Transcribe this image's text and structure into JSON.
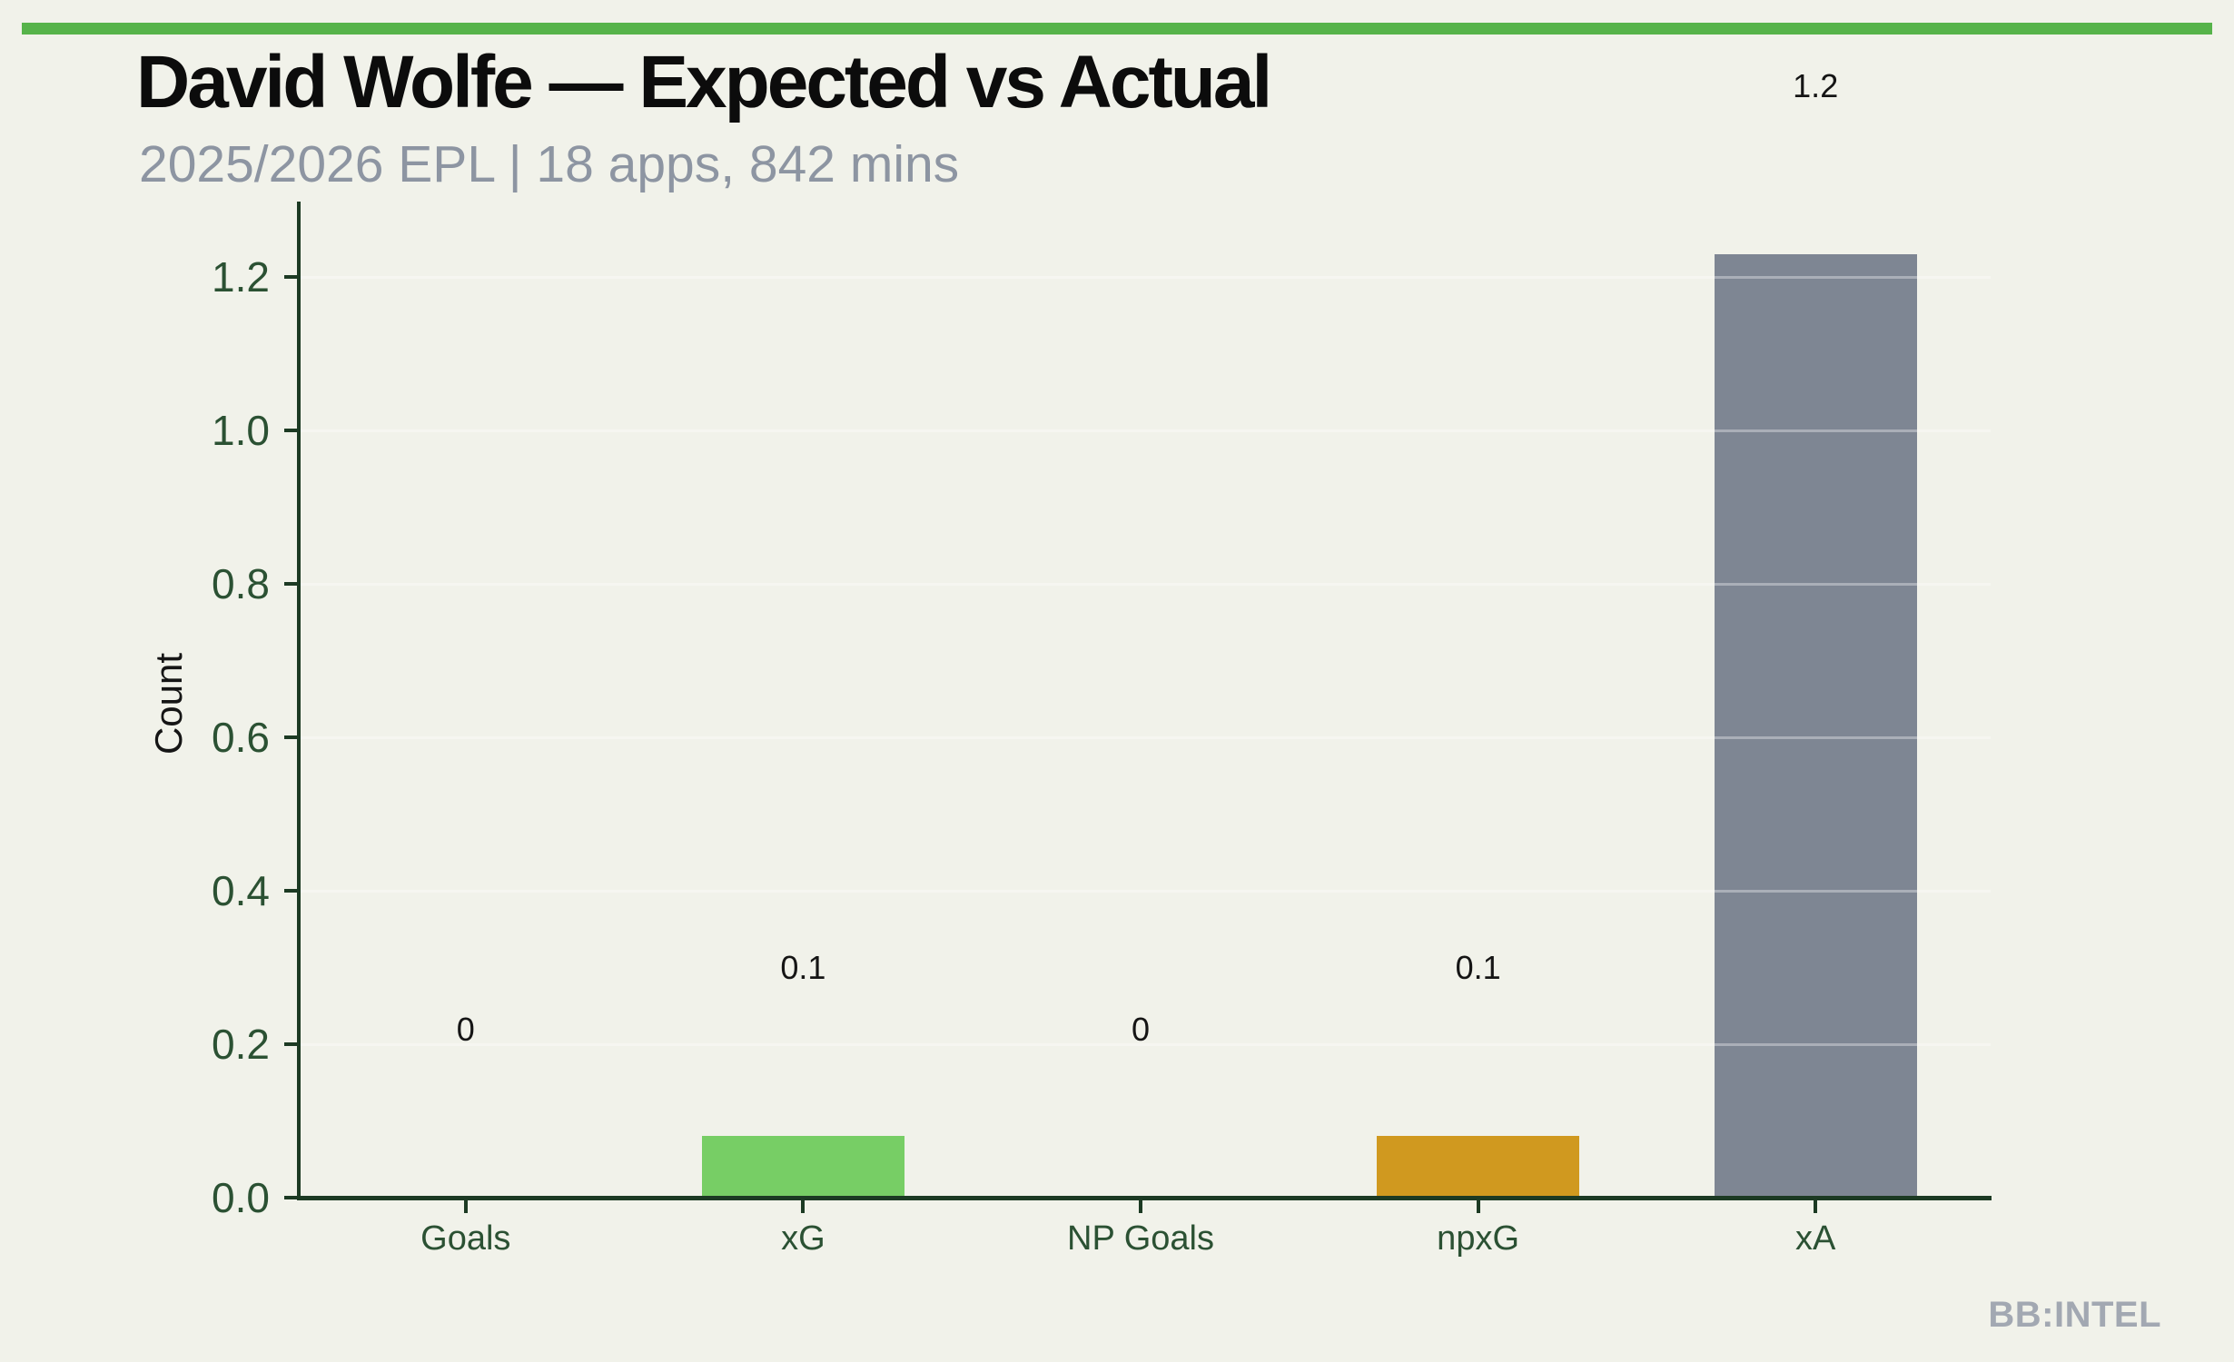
{
  "header": {
    "title": "David Wolfe — Expected vs Actual",
    "subtitle": "2025/2026 EPL | 18 apps, 842 mins"
  },
  "watermark": "BB:INTEL",
  "colors": {
    "background": "#f1f2ea",
    "accent_bar_green": "#56b34a",
    "axis_dark_green": "#1c3a23",
    "tick_label_green": "#2b5133",
    "title_text": "#0c0c0c",
    "subtitle_gray": "#8d95a2",
    "bar_label_text": "#151515",
    "watermark_gray": "#a2a8b2",
    "gridline": "rgba(255,255,255,0.34)"
  },
  "chart_data": {
    "type": "bar",
    "title": "David Wolfe — Expected vs Actual",
    "subtitle": "2025/2026 EPL | 18 apps, 842 mins",
    "categories": [
      "Goals",
      "xG",
      "NP Goals",
      "npxG",
      "xA"
    ],
    "values": [
      0,
      0.08,
      0,
      0.08,
      1.23
    ],
    "bar_labels": [
      "0",
      "0.1",
      "0",
      "0.1",
      "1.2"
    ],
    "bar_colors": [
      "#77ce65",
      "#77ce65",
      "#d0991f",
      "#d0991f",
      "#7e8693"
    ],
    "xlabel": "",
    "ylabel": "Count",
    "yticks": [
      0.0,
      0.2,
      0.4,
      0.6,
      0.8,
      1.0,
      1.2
    ],
    "ytick_labels": [
      "0.0",
      "0.2",
      "0.4",
      "0.6",
      "0.8",
      "1.0",
      "1.2"
    ],
    "ylim": [
      0,
      1.3
    ],
    "grid": true,
    "legend_position": "none"
  }
}
